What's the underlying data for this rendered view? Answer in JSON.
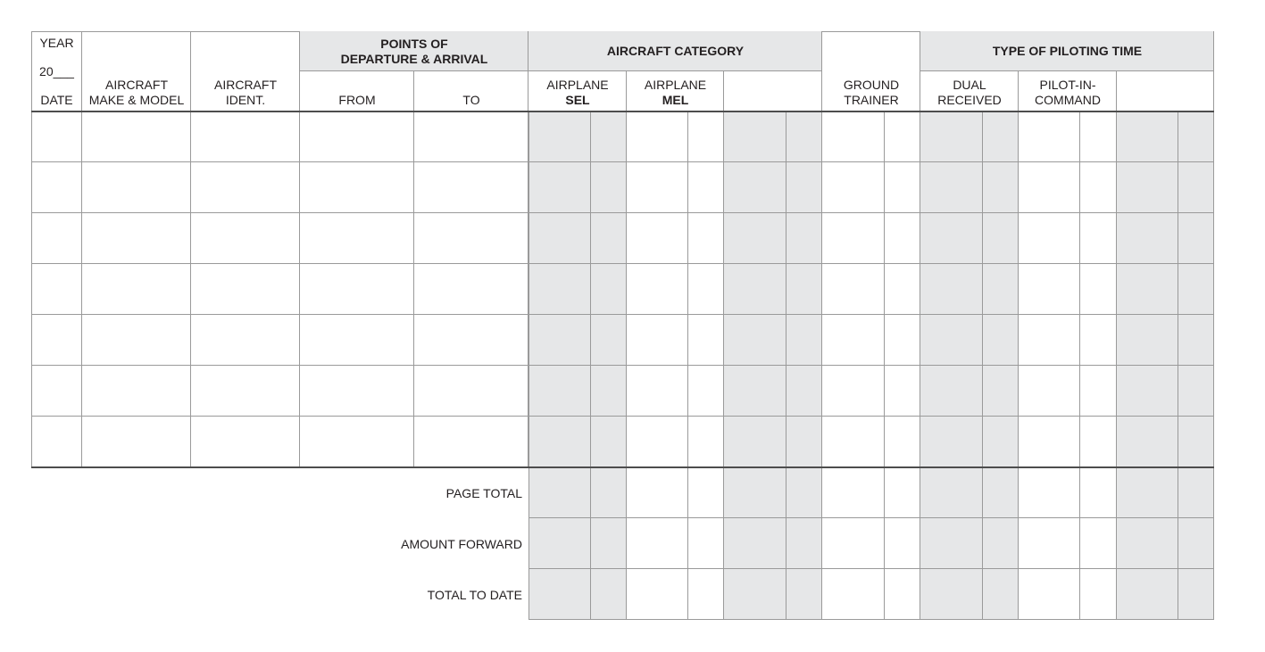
{
  "header": {
    "year_label": "YEAR",
    "year_value": "20___",
    "date_label": "DATE",
    "make_model": "AIRCRAFT MAKE & MODEL",
    "make_model_line1": "AIRCRAFT",
    "make_model_line2": "MAKE & MODEL",
    "ident_line1": "AIRCRAFT",
    "ident_line2": "IDENT.",
    "points_line1": "POINTS OF",
    "points_line2": "DEPARTURE & ARRIVAL",
    "from": "FROM",
    "to": "TO",
    "aircraft_category": "AIRCRAFT CATEGORY",
    "sel_line1": "AIRPLANE",
    "sel_line2": "SEL",
    "mel_line1": "AIRPLANE",
    "mel_line2": "MEL",
    "ground_line1": "GROUND",
    "ground_line2": "TRAINER",
    "type_of_piloting_time": "TYPE OF PILOTING TIME",
    "dual_line1": "DUAL",
    "dual_line2": "RECEIVED",
    "pic_line1": "PILOT-IN-",
    "pic_line2": "COMMAND"
  },
  "log_rows_count": 7,
  "totals": [
    "PAGE TOTAL",
    "AMOUNT FORWARD",
    "TOTAL TO DATE"
  ],
  "colors": {
    "shade": "#e6e7e8",
    "grid": "#9a9a9a",
    "rule": "#4d4d4d"
  }
}
